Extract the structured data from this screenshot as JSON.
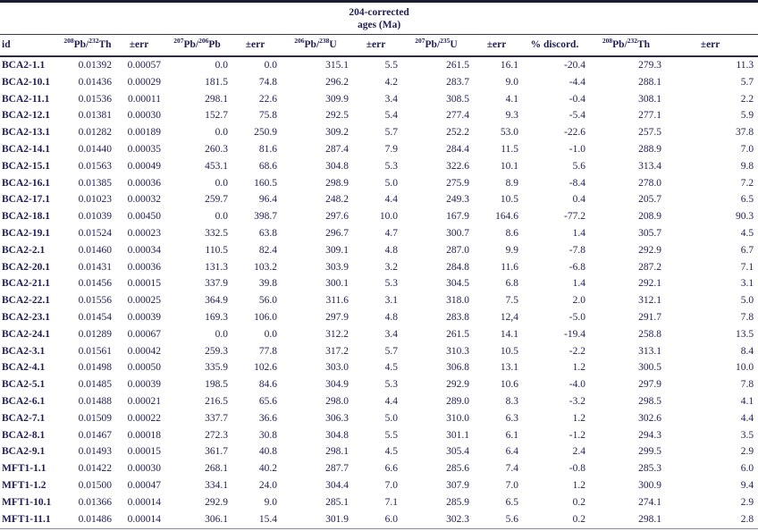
{
  "table": {
    "spanner": {
      "line1": "204-corrected",
      "line2": "ages (Ma)"
    },
    "columns": [
      {
        "id": "id",
        "label_parts": [
          [
            "t",
            "id"
          ]
        ]
      },
      {
        "id": "pb208-th232-ratio",
        "label_parts": [
          [
            "s",
            "208"
          ],
          [
            "t",
            "Pb/"
          ],
          [
            "s",
            "232"
          ],
          [
            "t",
            "Th"
          ]
        ]
      },
      {
        "id": "err-1",
        "label_parts": [
          [
            "t",
            "±err"
          ]
        ]
      },
      {
        "id": "pb207-pb206-age",
        "label_parts": [
          [
            "s",
            "207"
          ],
          [
            "t",
            "Pb/"
          ],
          [
            "s",
            "206"
          ],
          [
            "t",
            "Pb"
          ]
        ]
      },
      {
        "id": "err-2",
        "label_parts": [
          [
            "t",
            "±err"
          ]
        ]
      },
      {
        "id": "pb206-u238-age",
        "label_parts": [
          [
            "s",
            "206"
          ],
          [
            "t",
            "Pb/"
          ],
          [
            "s",
            "238"
          ],
          [
            "t",
            "U"
          ]
        ]
      },
      {
        "id": "err-3",
        "label_parts": [
          [
            "t",
            "±err"
          ]
        ]
      },
      {
        "id": "pb207-u235-age",
        "label_parts": [
          [
            "s",
            "207"
          ],
          [
            "t",
            "Pb/"
          ],
          [
            "s",
            "235"
          ],
          [
            "t",
            "U"
          ]
        ]
      },
      {
        "id": "err-4",
        "label_parts": [
          [
            "t",
            "±err"
          ]
        ]
      },
      {
        "id": "percent-discord",
        "label_parts": [
          [
            "t",
            "% discord."
          ]
        ]
      },
      {
        "id": "pb208-th232-age",
        "label_parts": [
          [
            "s",
            "208"
          ],
          [
            "t",
            "Pb/"
          ],
          [
            "s",
            "232"
          ],
          [
            "t",
            "Th"
          ]
        ]
      },
      {
        "id": "err-5",
        "label_parts": [
          [
            "t",
            "±err"
          ]
        ]
      }
    ],
    "rows": [
      [
        "BCA2-1.1",
        "0.01392",
        "0.00057",
        "0.0",
        "0.0",
        "315.1",
        "5.5",
        "261.5",
        "16.1",
        "-20.4",
        "279.3",
        "11.3"
      ],
      [
        "BCA2-10.1",
        "0.01436",
        "0.00029",
        "181.5",
        "74.8",
        "296.2",
        "4.2",
        "283.7",
        "9.0",
        "-4.4",
        "288.1",
        "5.7"
      ],
      [
        "BCA2-11.1",
        "0.01536",
        "0.00011",
        "298.1",
        "22.6",
        "309.9",
        "3.4",
        "308.5",
        "4.1",
        "-0.4",
        "308.1",
        "2.2"
      ],
      [
        "BCA2-12.1",
        "0.01381",
        "0.00030",
        "152.7",
        "75.8",
        "292.5",
        "5.4",
        "277.4",
        "9.3",
        "-5.4",
        "277.1",
        "5.9"
      ],
      [
        "BCA2-13.1",
        "0.01282",
        "0.00189",
        "0.0",
        "250.9",
        "309.2",
        "5.7",
        "252.2",
        "53.0",
        "-22.6",
        "257.5",
        "37.8"
      ],
      [
        "BCA2-14.1",
        "0.01440",
        "0.00035",
        "260.3",
        "81.6",
        "287.4",
        "7.9",
        "284.4",
        "11.5",
        "-1.0",
        "288.9",
        "7.0"
      ],
      [
        "BCA2-15.1",
        "0.01563",
        "0.00049",
        "453.1",
        "68.6",
        "304.8",
        "5.3",
        "322.6",
        "10.1",
        "5.6",
        "313.4",
        "9.8"
      ],
      [
        "BCA2-16.1",
        "0.01385",
        "0.00036",
        "0.0",
        "160.5",
        "298.9",
        "5.0",
        "275.9",
        "8.9",
        "-8.4",
        "278.0",
        "7.2"
      ],
      [
        "BCA2-17.1",
        "0.01023",
        "0.00032",
        "259.7",
        "96.4",
        "248.2",
        "4.4",
        "249.3",
        "10.5",
        "0.4",
        "205.7",
        "6.5"
      ],
      [
        "BCA2-18.1",
        "0.01039",
        "0.00450",
        "0.0",
        "398.7",
        "297.6",
        "10.0",
        "167.9",
        "164.6",
        "-77.2",
        "208.9",
        "90.3"
      ],
      [
        "BCA2-19.1",
        "0.01524",
        "0.00023",
        "332.5",
        "63.8",
        "296.7",
        "4.7",
        "300.7",
        "8.6",
        "1.4",
        "305.7",
        "4.5"
      ],
      [
        "BCA2-2.1",
        "0.01460",
        "0.00034",
        "110.5",
        "82.4",
        "309.1",
        "4.8",
        "287.0",
        "9.9",
        "-7.8",
        "292.9",
        "6.7"
      ],
      [
        "BCA2-20.1",
        "0.01431",
        "0.00036",
        "131.3",
        "103.2",
        "303.9",
        "3.2",
        "284.8",
        "11.6",
        "-6.8",
        "287.2",
        "7.1"
      ],
      [
        "BCA2-21.1",
        "0.01456",
        "0.00015",
        "337.9",
        "39.8",
        "300.1",
        "5.3",
        "304.5",
        "6.8",
        "1.4",
        "292.1",
        "3.1"
      ],
      [
        "BCA2-22.1",
        "0.01556",
        "0.00025",
        "364.9",
        "56.0",
        "311.6",
        "3.1",
        "318.0",
        "7.5",
        "2.0",
        "312.1",
        "5.0"
      ],
      [
        "BCA2-23.1",
        "0.01454",
        "0.00039",
        "169.3",
        "106.0",
        "297.9",
        "4.8",
        "283.8",
        "12,4",
        "-5.0",
        "291.7",
        "7.8"
      ],
      [
        "BCA2-24.1",
        "0.01289",
        "0.00067",
        "0.0",
        "0.0",
        "312.2",
        "3.4",
        "261.5",
        "14.1",
        "-19.4",
        "258.8",
        "13.5"
      ],
      [
        "BCA2-3.1",
        "0.01561",
        "0.00042",
        "259.3",
        "77.8",
        "317.2",
        "5.7",
        "310.3",
        "10.5",
        "-2.2",
        "313.1",
        "8.4"
      ],
      [
        "BCA2-4.1",
        "0.01498",
        "0.00050",
        "335.9",
        "102.6",
        "303.0",
        "4.5",
        "306.8",
        "13.1",
        "1.2",
        "300.5",
        "10.0"
      ],
      [
        "BCA2-5.1",
        "0.01485",
        "0.00039",
        "198.5",
        "84.6",
        "304.9",
        "5.3",
        "292.9",
        "10.6",
        "-4.0",
        "297.9",
        "7.8"
      ],
      [
        "BCA2-6.1",
        "0.01488",
        "0.00021",
        "216.5",
        "65.6",
        "298.0",
        "4.4",
        "289.0",
        "8.3",
        "-3.2",
        "298.5",
        "4.1"
      ],
      [
        "BCA2-7.1",
        "0.01509",
        "0.00022",
        "337.7",
        "36.6",
        "306.3",
        "5.0",
        "310.0",
        "6.3",
        "1.2",
        "302.6",
        "4.4"
      ],
      [
        "BCA2-8.1",
        "0.01467",
        "0.00018",
        "272.3",
        "30.8",
        "304.8",
        "5.5",
        "301.1",
        "6.1",
        "-1.2",
        "294.3",
        "3.5"
      ],
      [
        "BCA2-9.1",
        "0.01493",
        "0.00015",
        "361.7",
        "40.8",
        "298.1",
        "4.5",
        "305.4",
        "6.4",
        "2.4",
        "299.5",
        "2.9"
      ],
      [
        "MFT1-1.1",
        "0.01422",
        "0.00030",
        "268.1",
        "40.2",
        "287.7",
        "6.6",
        "285.6",
        "7.4",
        "-0.8",
        "285.3",
        "6.0"
      ],
      [
        "MFT1-1.2",
        "0.01500",
        "0.00047",
        "334.1",
        "24.0",
        "304.4",
        "7.0",
        "307.9",
        "7.0",
        "1.2",
        "300.9",
        "9.4"
      ],
      [
        "MFT1-10.1",
        "0.01366",
        "0.00014",
        "292.9",
        "9.0",
        "285.1",
        "7.1",
        "285.9",
        "6.5",
        "0.2",
        "274.1",
        "2.9"
      ],
      [
        "MFT1-11.1",
        "0.01486",
        "0.00014",
        "306.1",
        "15.4",
        "301.9",
        "6.0",
        "302.3",
        "5.6",
        "0.2",
        "298.1",
        "2.8"
      ]
    ]
  }
}
